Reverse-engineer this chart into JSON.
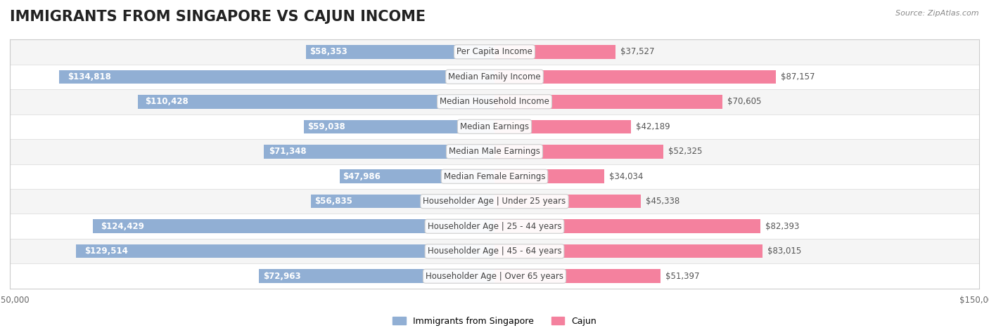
{
  "title": "IMMIGRANTS FROM SINGAPORE VS CAJUN INCOME",
  "source": "Source: ZipAtlas.com",
  "categories": [
    "Per Capita Income",
    "Median Family Income",
    "Median Household Income",
    "Median Earnings",
    "Median Male Earnings",
    "Median Female Earnings",
    "Householder Age | Under 25 years",
    "Householder Age | 25 - 44 years",
    "Householder Age | 45 - 64 years",
    "Householder Age | Over 65 years"
  ],
  "singapore_values": [
    58353,
    134818,
    110428,
    59038,
    71348,
    47986,
    56835,
    124429,
    129514,
    72963
  ],
  "cajun_values": [
    37527,
    87157,
    70605,
    42189,
    52325,
    34034,
    45338,
    82393,
    83015,
    51397
  ],
  "singapore_labels": [
    "$58,353",
    "$134,818",
    "$110,428",
    "$59,038",
    "$71,348",
    "$47,986",
    "$56,835",
    "$124,429",
    "$129,514",
    "$72,963"
  ],
  "cajun_labels": [
    "$37,527",
    "$87,157",
    "$70,605",
    "$42,189",
    "$52,325",
    "$34,034",
    "$45,338",
    "$82,393",
    "$83,015",
    "$51,397"
  ],
  "singapore_color": "#91afd4",
  "cajun_color": "#f4819e",
  "singapore_color_dark": "#5b8fc7",
  "cajun_color_dark": "#f05080",
  "max_value": 150000,
  "bar_height": 0.55,
  "row_bg_colors": [
    "#f5f5f5",
    "#ffffff"
  ],
  "title_fontsize": 15,
  "label_fontsize": 8.5,
  "category_fontsize": 8.5,
  "axis_fontsize": 8.5,
  "legend_fontsize": 9,
  "background_color": "#ffffff"
}
